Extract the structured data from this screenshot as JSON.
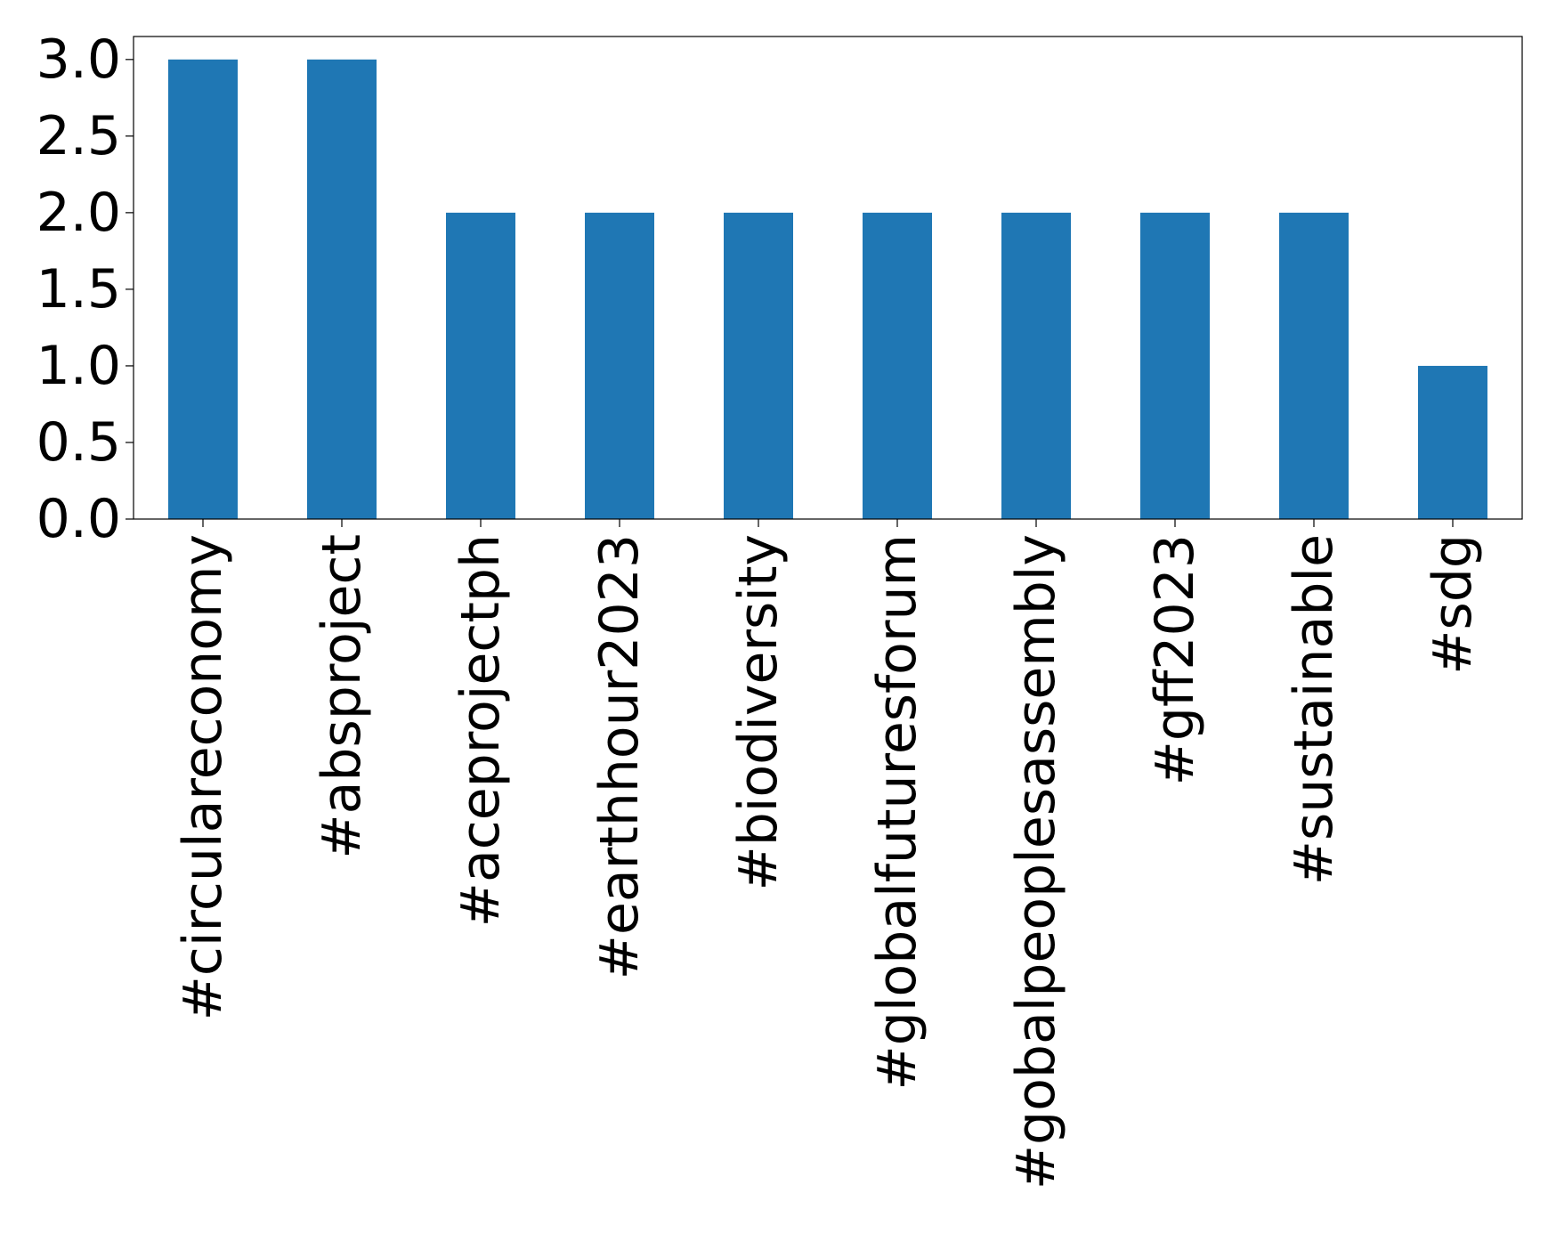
{
  "chart_data": {
    "type": "bar",
    "title": "",
    "xlabel": "",
    "ylabel": "",
    "categories": [
      "#circulareconomy",
      "#absproject",
      "#aceprojectph",
      "#earthhour2023",
      "#biodiversity",
      "#globalfuturesforum",
      "#gobalpeoplesassembly",
      "#gff2023",
      "#sustainable",
      "#sdg"
    ],
    "values": [
      3,
      3,
      2,
      2,
      2,
      2,
      2,
      2,
      2,
      1
    ],
    "ylim": [
      0,
      3.15
    ],
    "yticks": [
      "0.0",
      "0.5",
      "1.0",
      "1.5",
      "2.0",
      "2.5",
      "3.0"
    ],
    "grid": false,
    "legend": "none",
    "bar_color": "#1f77b4",
    "axis_color": "#000000"
  }
}
